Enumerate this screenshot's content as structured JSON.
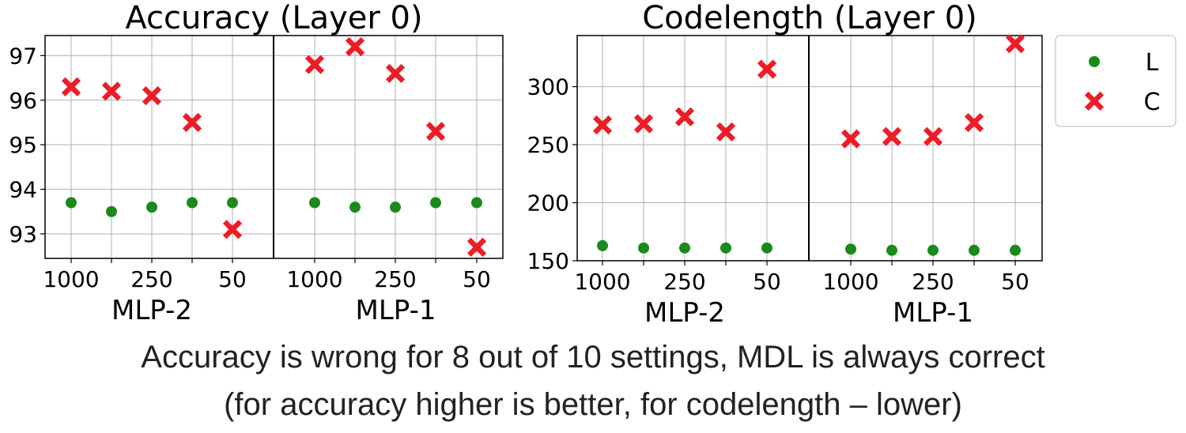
{
  "chart_data": [
    {
      "type": "scatter",
      "title": "Accuracy (Layer 0)",
      "ylim": [
        92.45,
        97.45
      ],
      "yticks": [
        "93",
        "94",
        "95",
        "96",
        "97"
      ],
      "grid": true,
      "panels": [
        {
          "label": "MLP-2",
          "xticks": [
            "1000",
            "",
            "250",
            "",
            "50"
          ]
        },
        {
          "label": "MLP-1",
          "xticks": [
            "1000",
            "",
            "250",
            "",
            "50"
          ]
        }
      ],
      "series": [
        {
          "name": "L",
          "marker": "circle",
          "color": "#1a8a1a",
          "values": [
            [
              93.7,
              93.5,
              93.6,
              93.7,
              93.7
            ],
            [
              93.7,
              93.6,
              93.6,
              93.7,
              93.7
            ]
          ]
        },
        {
          "name": "C",
          "marker": "x",
          "color": "#ee1c25",
          "values": [
            [
              96.3,
              96.2,
              96.1,
              95.5,
              93.1
            ],
            [
              96.8,
              97.2,
              96.6,
              95.3,
              92.7
            ]
          ]
        }
      ]
    },
    {
      "type": "scatter",
      "title": "Codelength (Layer 0)",
      "ylim": [
        150,
        344
      ],
      "yticks": [
        "150",
        "200",
        "250",
        "300"
      ],
      "grid": true,
      "legend": {
        "placement": "right"
      },
      "panels": [
        {
          "label": "MLP-2",
          "xticks": [
            "1000",
            "",
            "250",
            "",
            "50"
          ]
        },
        {
          "label": "MLP-1",
          "xticks": [
            "1000",
            "",
            "250",
            "",
            "50"
          ]
        }
      ],
      "series": [
        {
          "name": "L",
          "marker": "circle",
          "color": "#1a8a1a",
          "values": [
            [
              163,
              161,
              161,
              161,
              161
            ],
            [
              160,
              159,
              159,
              159,
              159
            ]
          ]
        },
        {
          "name": "C",
          "marker": "x",
          "color": "#ee1c25",
          "values": [
            [
              267,
              268,
              274,
              261,
              315
            ],
            [
              255,
              257,
              257,
              269,
              337
            ]
          ]
        }
      ]
    }
  ],
  "caption": {
    "line1": "Accuracy is wrong for 8 out of 10 settings, MDL is always correct",
    "line2": "(for accuracy higher is better, for codelength – lower)"
  }
}
